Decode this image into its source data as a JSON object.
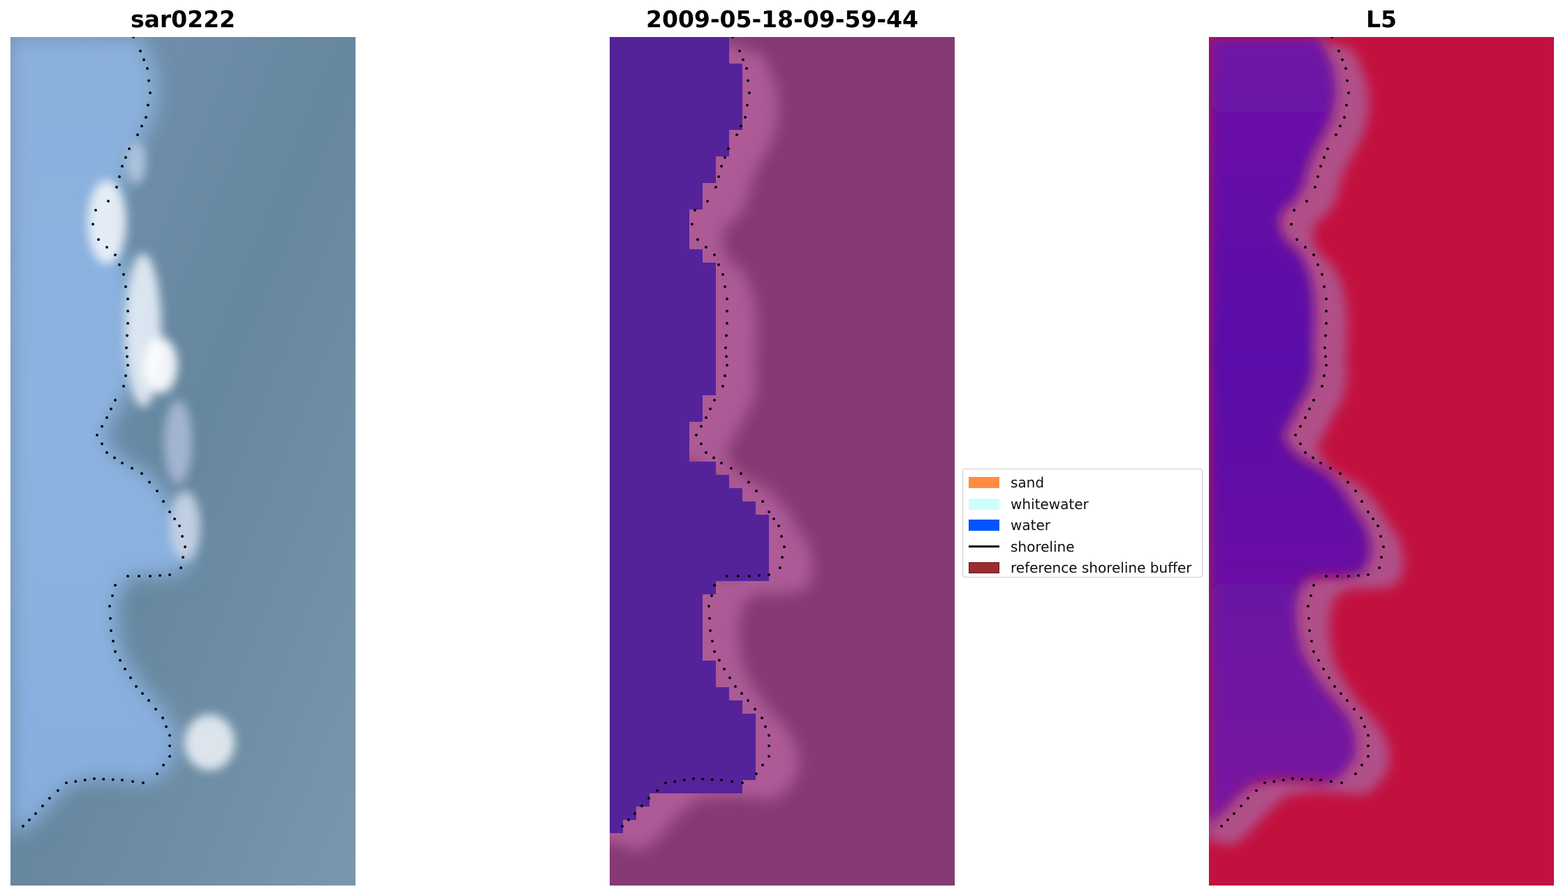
{
  "panels": [
    {
      "title": "sar0222"
    },
    {
      "title": "2009-05-18-09-59-44"
    },
    {
      "title": "L5"
    }
  ],
  "legend": {
    "items": [
      {
        "label": "sand",
        "color": "#ff8c42",
        "kind": "patch"
      },
      {
        "label": "whitewater",
        "color": "#ccfffb",
        "kind": "patch"
      },
      {
        "label": "water",
        "color": "#0055ff",
        "kind": "patch"
      },
      {
        "label": "shoreline",
        "color": "#000000",
        "kind": "line"
      },
      {
        "label": "reference shoreline buffer",
        "color": "#9b2d30",
        "kind": "patch"
      }
    ]
  },
  "colors": {
    "rgb_water": "#86aedc",
    "rgb_land": "#6b8cad",
    "class_water": "#54239a",
    "class_land": "#853a73",
    "class_edge": "#b4609d",
    "ndwi_water": "#6a15a8",
    "ndwi_land": "#c0103e",
    "ndwi_edge": "#b05088"
  }
}
